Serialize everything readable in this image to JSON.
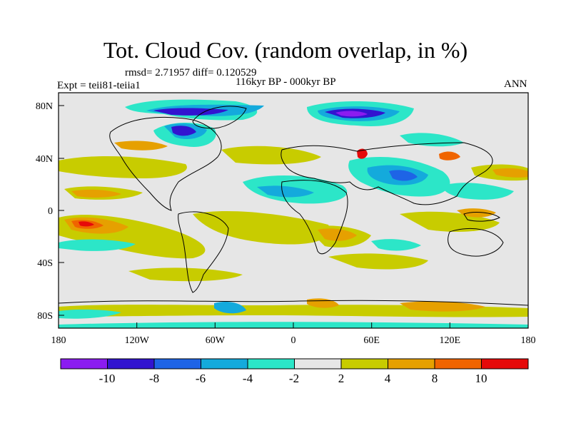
{
  "title": "Tot. Cloud Cov. (random overlap, in %)",
  "stats_line": "rmsd= 2.71957 diff= 0.120529",
  "period_line": "116kyr BP - 000kyr BP",
  "experiment_line": "Expt = teii81-teiia1",
  "season_label": "ANN",
  "map": {
    "projection": "cylindrical-equidistant",
    "lon_range": [
      -180,
      180
    ],
    "lat_range": [
      -90,
      90
    ],
    "x_tick_labels": [
      "180",
      "120W",
      "60W",
      "0",
      "60E",
      "120E",
      "180"
    ],
    "y_tick_labels": [
      "80N",
      "40N",
      "0",
      "40S",
      "80S"
    ]
  },
  "colorbar": {
    "levels": [
      "-10",
      "-8",
      "-6",
      "-4",
      "-2",
      "2",
      "4",
      "8",
      "10"
    ],
    "colors": [
      "#8b1cf0",
      "#3214d0",
      "#1e64e6",
      "#14aadc",
      "#2ce6c8",
      "#e6e6e6",
      "#c8cc00",
      "#e6a000",
      "#f06400",
      "#e60a0a"
    ]
  }
}
